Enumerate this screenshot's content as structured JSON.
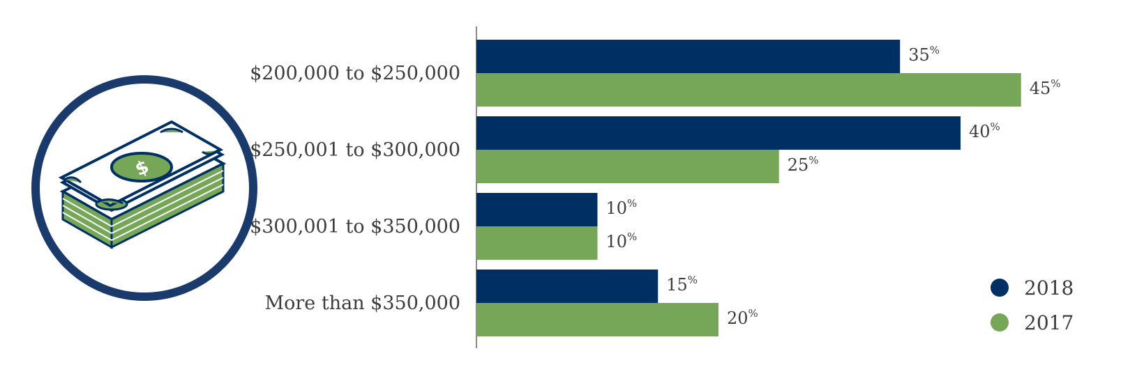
{
  "colors": {
    "navy": "#002f63",
    "green": "#76a658",
    "axis": "#8a8a8a",
    "text": "#3c3c3c",
    "icon_ring": "#1a3a6b"
  },
  "icon": {
    "name": "money-stack-icon"
  },
  "chart_data": {
    "type": "bar",
    "orientation": "horizontal",
    "categories": [
      "$200,000 to $250,000",
      "$250,001 to $300,000",
      "$300,001 to $350,000",
      "More than $350,000"
    ],
    "series": [
      {
        "name": "2018",
        "color": "#002f63",
        "values": [
          35,
          40,
          10,
          15
        ]
      },
      {
        "name": "2017",
        "color": "#76a658",
        "values": [
          45,
          25,
          10,
          20
        ]
      }
    ],
    "value_suffix": "%",
    "xlim": [
      0,
      50
    ],
    "grid": false,
    "legend_position": "bottom-right"
  }
}
